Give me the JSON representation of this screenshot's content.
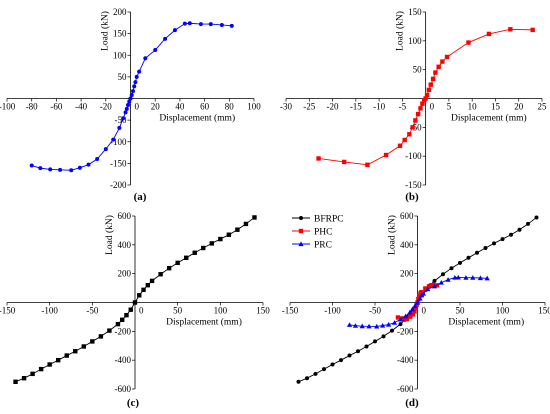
{
  "chart_data": [
    {
      "type": "line",
      "caption": "(a)",
      "xlabel": "Displacement (mm)",
      "ylabel": "Load (kN)",
      "xlim": [
        -100,
        100
      ],
      "ylim": [
        -200,
        200
      ],
      "xticks": [
        -100,
        -80,
        -60,
        -40,
        -20,
        0,
        20,
        40,
        60,
        80,
        100
      ],
      "yticks": [
        -200,
        -150,
        -100,
        -50,
        0,
        50,
        100,
        150,
        200
      ],
      "series": [
        {
          "color": "#0000ff",
          "marker": "circle",
          "x": [
            -80,
            -73,
            -65,
            -57,
            -48,
            -41,
            -34,
            -27,
            -20,
            -14,
            -9,
            -6,
            -4,
            -3,
            -2,
            -1,
            0,
            1,
            2,
            3,
            4,
            5,
            7,
            12,
            20,
            28,
            36,
            44,
            48,
            57,
            65,
            74,
            82
          ],
          "y": [
            -155,
            -161,
            -164,
            -165,
            -166,
            -160,
            -153,
            -140,
            -117,
            -95,
            -68,
            -46,
            -32,
            -24,
            -15,
            -7,
            0,
            8,
            17,
            28,
            38,
            50,
            62,
            93,
            112,
            138,
            158,
            173,
            174,
            172,
            172,
            170,
            168
          ]
        }
      ]
    },
    {
      "type": "line",
      "caption": "(b)",
      "xlabel": "Displacement (mm)",
      "ylabel": "Load (kN)",
      "xlim": [
        -30,
        25
      ],
      "ylim": [
        -150,
        150
      ],
      "xticks": [
        -30,
        -25,
        -20,
        -15,
        -10,
        -5,
        0,
        5,
        10,
        15,
        20,
        25
      ],
      "yticks": [
        -150,
        -100,
        -50,
        0,
        50,
        100,
        150
      ],
      "series": [
        {
          "color": "#ff0000",
          "marker": "square",
          "x": [
            -23,
            -17.5,
            -12.5,
            -8.5,
            -5.5,
            -4.5,
            -3.5,
            -2.8,
            -2.2,
            -1.6,
            -1.1,
            -0.7,
            -0.3,
            0,
            0.3,
            0.7,
            1.1,
            1.6,
            2.1,
            2.8,
            3.6,
            4.6,
            9.2,
            13.6,
            18.2,
            23
          ],
          "y": [
            -104,
            -110,
            -115,
            -98,
            -82,
            -72,
            -62,
            -50,
            -38,
            -27,
            -17,
            -9,
            -3,
            0,
            6,
            15,
            24,
            34,
            45,
            55,
            64,
            72,
            97,
            112,
            120,
            119
          ]
        }
      ]
    },
    {
      "type": "line",
      "caption": "(c)",
      "xlabel": "Displacement (mm)",
      "ylabel": "Load (kN)",
      "xlim": [
        -150,
        150
      ],
      "ylim": [
        -600,
        600
      ],
      "xticks": [
        -150,
        -100,
        -50,
        0,
        50,
        100,
        150
      ],
      "yticks": [
        -600,
        -400,
        -200,
        0,
        200,
        400,
        600
      ],
      "series": [
        {
          "color": "#000000",
          "marker": "square",
          "x": [
            -140,
            -130,
            -120,
            -110,
            -100,
            -90,
            -80,
            -70,
            -60,
            -50,
            -40,
            -30,
            -20,
            -15,
            -10,
            -5,
            0,
            5,
            10,
            15,
            20,
            30,
            40,
            50,
            60,
            70,
            80,
            90,
            100,
            110,
            120,
            130,
            140
          ],
          "y": [
            -550,
            -525,
            -495,
            -462,
            -430,
            -400,
            -368,
            -338,
            -305,
            -270,
            -235,
            -195,
            -150,
            -120,
            -88,
            -50,
            0,
            50,
            88,
            120,
            150,
            196,
            238,
            275,
            310,
            345,
            378,
            410,
            440,
            470,
            505,
            545,
            590
          ]
        }
      ]
    },
    {
      "type": "line",
      "caption": "(d)",
      "xlabel": "Displacement (mm)",
      "ylabel": "Load (kN)",
      "xlim": [
        -150,
        150
      ],
      "ylim": [
        -600,
        600
      ],
      "xticks": [
        -150,
        -100,
        -50,
        0,
        50,
        100,
        150
      ],
      "yticks": [
        -600,
        -400,
        -200,
        0,
        200,
        400,
        600
      ],
      "legend": "top-left",
      "series": [
        {
          "name": "BFRPC",
          "color": "#000000",
          "marker": "circle",
          "x": [
            -140,
            -130,
            -120,
            -110,
            -100,
            -90,
            -80,
            -70,
            -60,
            -50,
            -40,
            -30,
            -20,
            -15,
            -10,
            -5,
            0,
            5,
            10,
            15,
            20,
            30,
            40,
            50,
            60,
            70,
            80,
            90,
            100,
            110,
            120,
            130,
            140
          ],
          "y": [
            -550,
            -525,
            -495,
            -462,
            -430,
            -400,
            -368,
            -338,
            -305,
            -270,
            -235,
            -195,
            -150,
            -120,
            -88,
            -50,
            0,
            50,
            88,
            120,
            150,
            196,
            238,
            275,
            310,
            345,
            378,
            410,
            440,
            470,
            505,
            545,
            590
          ]
        },
        {
          "name": "PHC",
          "color": "#ff0000",
          "marker": "square",
          "x": [
            -23,
            -17.5,
            -12.5,
            -8.5,
            -5.5,
            -3.5,
            -2,
            -1,
            0,
            1,
            2,
            3.6,
            4.6,
            9.2,
            13.6,
            18.2,
            23
          ],
          "y": [
            -104,
            -110,
            -115,
            -98,
            -82,
            -62,
            -38,
            -17,
            0,
            24,
            45,
            64,
            72,
            97,
            112,
            120,
            119
          ]
        },
        {
          "name": "PRC",
          "color": "#0000ff",
          "marker": "triangle",
          "x": [
            -80,
            -73,
            -65,
            -57,
            -48,
            -41,
            -34,
            -27,
            -20,
            -14,
            -9,
            -6,
            -3,
            0,
            3,
            5,
            7,
            12,
            20,
            28,
            36,
            44,
            48,
            57,
            65,
            74,
            82
          ],
          "y": [
            -155,
            -161,
            -164,
            -165,
            -166,
            -160,
            -153,
            -140,
            -117,
            -95,
            -68,
            -46,
            -24,
            0,
            28,
            50,
            62,
            93,
            112,
            138,
            158,
            173,
            174,
            172,
            172,
            170,
            168
          ]
        }
      ]
    }
  ]
}
